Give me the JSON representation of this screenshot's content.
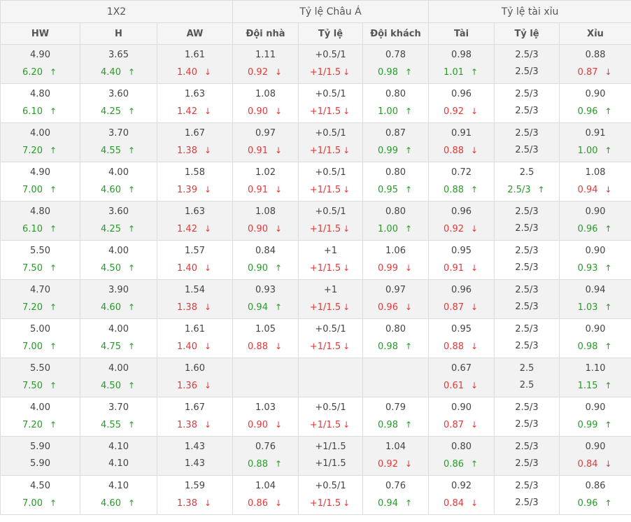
{
  "header": {
    "groups": [
      "1X2",
      "Tỷ lệ Châu Á",
      "Tỷ lệ tài xỉu"
    ],
    "columns": [
      "HW",
      "H",
      "AW",
      "Đội nhà",
      "Tỷ lệ",
      "Đội khách",
      "Tài",
      "Tỷ lệ",
      "Xỉu"
    ]
  },
  "icons": {
    "up": "arrow-up-icon",
    "down": "arrow-down-icon"
  },
  "colors": {
    "up": "#2a9a2a",
    "down": "#e03a3a",
    "header_bg": "#f5f5f5",
    "alt_row": "#f2f2f2"
  },
  "rows": [
    {
      "cells": [
        {
          "o": "4.90",
          "c": "6.20",
          "d": "up"
        },
        {
          "o": "3.65",
          "c": "4.40",
          "d": "up"
        },
        {
          "o": "1.61",
          "c": "1.40",
          "d": "down"
        },
        {
          "o": "1.11",
          "c": "0.92",
          "d": "down"
        },
        {
          "o": "+0.5/1",
          "c": "+1/1.5",
          "d": "down"
        },
        {
          "o": "0.78",
          "c": "0.98",
          "d": "up"
        },
        {
          "o": "0.98",
          "c": "1.01",
          "d": "up"
        },
        {
          "o": "2.5/3",
          "c": "2.5/3",
          "d": ""
        },
        {
          "o": "0.88",
          "c": "0.87",
          "d": "down"
        }
      ]
    },
    {
      "cells": [
        {
          "o": "4.80",
          "c": "6.10",
          "d": "up"
        },
        {
          "o": "3.60",
          "c": "4.25",
          "d": "up"
        },
        {
          "o": "1.63",
          "c": "1.42",
          "d": "down"
        },
        {
          "o": "1.08",
          "c": "0.90",
          "d": "down"
        },
        {
          "o": "+0.5/1",
          "c": "+1/1.5",
          "d": "down"
        },
        {
          "o": "0.80",
          "c": "1.00",
          "d": "up"
        },
        {
          "o": "0.96",
          "c": "0.92",
          "d": "down"
        },
        {
          "o": "2.5/3",
          "c": "2.5/3",
          "d": ""
        },
        {
          "o": "0.90",
          "c": "0.96",
          "d": "up"
        }
      ]
    },
    {
      "cells": [
        {
          "o": "4.00",
          "c": "7.20",
          "d": "up"
        },
        {
          "o": "3.70",
          "c": "4.55",
          "d": "up"
        },
        {
          "o": "1.67",
          "c": "1.38",
          "d": "down"
        },
        {
          "o": "0.97",
          "c": "0.91",
          "d": "down"
        },
        {
          "o": "+0.5/1",
          "c": "+1/1.5",
          "d": "down"
        },
        {
          "o": "0.87",
          "c": "0.99",
          "d": "up"
        },
        {
          "o": "0.91",
          "c": "0.88",
          "d": "down"
        },
        {
          "o": "2.5/3",
          "c": "2.5/3",
          "d": ""
        },
        {
          "o": "0.91",
          "c": "1.00",
          "d": "up"
        }
      ]
    },
    {
      "cells": [
        {
          "o": "4.90",
          "c": "7.00",
          "d": "up"
        },
        {
          "o": "4.00",
          "c": "4.60",
          "d": "up"
        },
        {
          "o": "1.58",
          "c": "1.39",
          "d": "down"
        },
        {
          "o": "1.02",
          "c": "0.91",
          "d": "down"
        },
        {
          "o": "+0.5/1",
          "c": "+1/1.5",
          "d": "down"
        },
        {
          "o": "0.80",
          "c": "0.95",
          "d": "up"
        },
        {
          "o": "0.72",
          "c": "0.88",
          "d": "up"
        },
        {
          "o": "2.5",
          "c": "2.5/3",
          "d": "up"
        },
        {
          "o": "1.08",
          "c": "0.94",
          "d": "down"
        }
      ]
    },
    {
      "cells": [
        {
          "o": "4.80",
          "c": "6.10",
          "d": "up"
        },
        {
          "o": "3.60",
          "c": "4.25",
          "d": "up"
        },
        {
          "o": "1.63",
          "c": "1.42",
          "d": "down"
        },
        {
          "o": "1.08",
          "c": "0.90",
          "d": "down"
        },
        {
          "o": "+0.5/1",
          "c": "+1/1.5",
          "d": "down"
        },
        {
          "o": "0.80",
          "c": "1.00",
          "d": "up"
        },
        {
          "o": "0.96",
          "c": "0.92",
          "d": "down"
        },
        {
          "o": "2.5/3",
          "c": "2.5/3",
          "d": ""
        },
        {
          "o": "0.90",
          "c": "0.96",
          "d": "up"
        }
      ]
    },
    {
      "cells": [
        {
          "o": "5.50",
          "c": "7.50",
          "d": "up"
        },
        {
          "o": "4.00",
          "c": "4.50",
          "d": "up"
        },
        {
          "o": "1.57",
          "c": "1.40",
          "d": "down"
        },
        {
          "o": "0.84",
          "c": "0.90",
          "d": "up"
        },
        {
          "o": "+1",
          "c": "+1/1.5",
          "d": "down"
        },
        {
          "o": "1.06",
          "c": "0.99",
          "d": "down"
        },
        {
          "o": "0.95",
          "c": "0.91",
          "d": "down"
        },
        {
          "o": "2.5/3",
          "c": "2.5/3",
          "d": ""
        },
        {
          "o": "0.90",
          "c": "0.93",
          "d": "up"
        }
      ]
    },
    {
      "cells": [
        {
          "o": "4.70",
          "c": "7.20",
          "d": "up"
        },
        {
          "o": "3.90",
          "c": "4.60",
          "d": "up"
        },
        {
          "o": "1.54",
          "c": "1.38",
          "d": "down"
        },
        {
          "o": "0.93",
          "c": "0.94",
          "d": "up"
        },
        {
          "o": "+1",
          "c": "+1/1.5",
          "d": "down"
        },
        {
          "o": "0.97",
          "c": "0.96",
          "d": "down"
        },
        {
          "o": "0.96",
          "c": "0.87",
          "d": "down"
        },
        {
          "o": "2.5/3",
          "c": "2.5/3",
          "d": ""
        },
        {
          "o": "0.94",
          "c": "1.03",
          "d": "up"
        }
      ]
    },
    {
      "cells": [
        {
          "o": "5.00",
          "c": "7.00",
          "d": "up"
        },
        {
          "o": "4.00",
          "c": "4.75",
          "d": "up"
        },
        {
          "o": "1.61",
          "c": "1.40",
          "d": "down"
        },
        {
          "o": "1.05",
          "c": "0.88",
          "d": "down"
        },
        {
          "o": "+0.5/1",
          "c": "+1/1.5",
          "d": "down"
        },
        {
          "o": "0.80",
          "c": "0.98",
          "d": "up"
        },
        {
          "o": "0.95",
          "c": "0.88",
          "d": "down"
        },
        {
          "o": "2.5/3",
          "c": "2.5/3",
          "d": ""
        },
        {
          "o": "0.90",
          "c": "0.98",
          "d": "up"
        }
      ]
    },
    {
      "cells": [
        {
          "o": "5.50",
          "c": "7.50",
          "d": "up"
        },
        {
          "o": "4.00",
          "c": "4.50",
          "d": "up"
        },
        {
          "o": "1.60",
          "c": "1.36",
          "d": "down"
        },
        {
          "o": "",
          "c": "",
          "d": ""
        },
        {
          "o": "",
          "c": "",
          "d": ""
        },
        {
          "o": "",
          "c": "",
          "d": ""
        },
        {
          "o": "0.67",
          "c": "0.61",
          "d": "down"
        },
        {
          "o": "2.5",
          "c": "2.5",
          "d": ""
        },
        {
          "o": "1.10",
          "c": "1.15",
          "d": "up"
        }
      ]
    },
    {
      "cells": [
        {
          "o": "4.00",
          "c": "7.20",
          "d": "up"
        },
        {
          "o": "3.70",
          "c": "4.55",
          "d": "up"
        },
        {
          "o": "1.67",
          "c": "1.38",
          "d": "down"
        },
        {
          "o": "1.03",
          "c": "0.90",
          "d": "down"
        },
        {
          "o": "+0.5/1",
          "c": "+1/1.5",
          "d": "down"
        },
        {
          "o": "0.79",
          "c": "0.98",
          "d": "up"
        },
        {
          "o": "0.90",
          "c": "0.87",
          "d": "down"
        },
        {
          "o": "2.5/3",
          "c": "2.5/3",
          "d": ""
        },
        {
          "o": "0.90",
          "c": "0.99",
          "d": "up"
        }
      ]
    },
    {
      "cells": [
        {
          "o": "5.90",
          "c": "5.90",
          "d": ""
        },
        {
          "o": "4.10",
          "c": "4.10",
          "d": ""
        },
        {
          "o": "1.43",
          "c": "1.43",
          "d": ""
        },
        {
          "o": "0.76",
          "c": "0.88",
          "d": "up"
        },
        {
          "o": "+1/1.5",
          "c": "+1/1.5",
          "d": ""
        },
        {
          "o": "1.04",
          "c": "0.92",
          "d": "down"
        },
        {
          "o": "0.80",
          "c": "0.86",
          "d": "up"
        },
        {
          "o": "2.5/3",
          "c": "2.5/3",
          "d": ""
        },
        {
          "o": "0.90",
          "c": "0.84",
          "d": "down"
        }
      ]
    },
    {
      "cells": [
        {
          "o": "4.50",
          "c": "7.00",
          "d": "up"
        },
        {
          "o": "4.10",
          "c": "4.60",
          "d": "up"
        },
        {
          "o": "1.59",
          "c": "1.38",
          "d": "down"
        },
        {
          "o": "1.04",
          "c": "0.86",
          "d": "down"
        },
        {
          "o": "+0.5/1",
          "c": "+1/1.5",
          "d": "down"
        },
        {
          "o": "0.76",
          "c": "0.94",
          "d": "up"
        },
        {
          "o": "0.92",
          "c": "0.84",
          "d": "down"
        },
        {
          "o": "2.5/3",
          "c": "2.5/3",
          "d": ""
        },
        {
          "o": "0.86",
          "c": "0.96",
          "d": "up"
        }
      ]
    }
  ]
}
